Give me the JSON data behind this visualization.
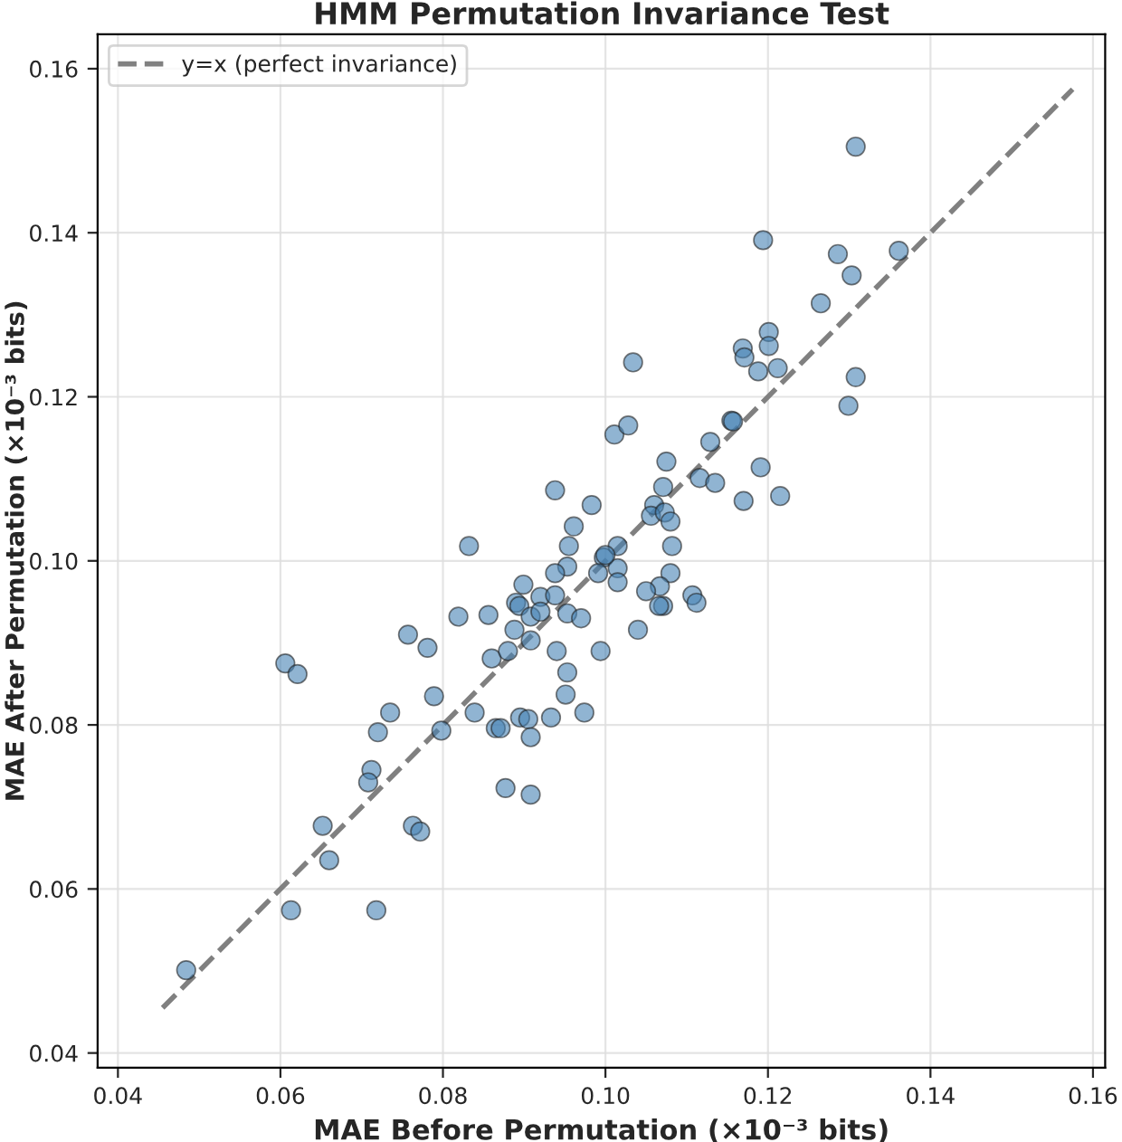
{
  "chart_data": {
    "type": "scatter",
    "title": "HMM Permutation Invariance Test",
    "xlabel": "MAE Before Permutation (×10⁻³ bits)",
    "ylabel": "MAE After Permutation (×10⁻³ bits)",
    "xlim": [
      0.0375,
      0.1615
    ],
    "ylim": [
      0.0382,
      0.1642
    ],
    "xticks": [
      0.04,
      0.06,
      0.08,
      {
        "value": 0.1,
        "label": "0.10"
      },
      0.12,
      0.14,
      0.16
    ],
    "yticks": [
      0.04,
      0.06,
      0.08,
      {
        "value": 0.1,
        "label": "0.10"
      },
      0.12,
      0.14,
      0.16
    ],
    "grid": true,
    "legend": "top left",
    "marker": "circle",
    "series": [
      {
        "color": "#4682b4",
        "x": [
          0.0484,
          0.0606,
          0.0621,
          0.0757,
          0.0781,
          0.0819,
          0.0856,
          0.086,
          0.0789,
          0.0735,
          0.072,
          0.0798,
          0.0839,
          0.0865,
          0.0871,
          0.0712,
          0.0708,
          0.0652,
          0.0763,
          0.0772,
          0.066,
          0.0613,
          0.0718,
          0.0877,
          0.1011,
          0.1028,
          0.0938,
          0.0983,
          0.0961,
          0.0955,
          0.0832,
          0.0953,
          0.0938,
          0.0899,
          0.092,
          0.0938,
          0.089,
          0.0894,
          0.0908,
          0.092,
          0.0953,
          0.097,
          0.0998,
          0.0991,
          0.1015,
          0.1015,
          0.0888,
          0.0908,
          0.088,
          0.094,
          0.0994,
          0.0953,
          0.0951,
          0.0974,
          0.0933,
          0.0895,
          0.0905,
          0.0908,
          0.0908,
          0.104,
          0.1034,
          0.1169,
          0.1171,
          0.1201,
          0.1201,
          0.1188,
          0.1212,
          0.1308,
          0.1299,
          0.1155,
          0.1157,
          0.1129,
          0.1075,
          0.1116,
          0.1135,
          0.1191,
          0.117,
          0.1215,
          0.1071,
          0.106,
          0.1056,
          0.1073,
          0.108,
          0.1015,
          0.1082,
          0.1,
          0.108,
          0.1067,
          0.105,
          0.1107,
          0.1112,
          0.1071,
          0.1066,
          0.1308,
          0.1194,
          0.1286,
          0.1361,
          0.1303,
          0.1265
        ],
        "values": [
          0.0501,
          0.0875,
          0.0862,
          0.091,
          0.0894,
          0.0932,
          0.0934,
          0.0881,
          0.0835,
          0.0815,
          0.0791,
          0.0793,
          0.0815,
          0.0796,
          0.0796,
          0.0745,
          0.073,
          0.0677,
          0.0677,
          0.067,
          0.0635,
          0.0574,
          0.0574,
          0.0723,
          0.1154,
          0.1165,
          0.1086,
          0.1068,
          0.1042,
          0.1018,
          0.1018,
          0.0993,
          0.0985,
          0.0971,
          0.0956,
          0.0958,
          0.0949,
          0.0945,
          0.0932,
          0.0938,
          0.0936,
          0.093,
          0.1004,
          0.0985,
          0.0991,
          0.0974,
          0.0916,
          0.0903,
          0.089,
          0.089,
          0.089,
          0.0864,
          0.0837,
          0.0815,
          0.0809,
          0.0809,
          0.0807,
          0.0785,
          0.0715,
          0.0916,
          0.1242,
          0.1259,
          0.1248,
          0.1279,
          0.1262,
          0.1231,
          0.1235,
          0.1224,
          0.1189,
          0.1171,
          0.117,
          0.1145,
          0.1121,
          0.1101,
          0.1095,
          0.1114,
          0.1073,
          0.1079,
          0.109,
          0.1068,
          0.1055,
          0.1059,
          0.1048,
          0.1018,
          0.1018,
          0.1007,
          0.0985,
          0.0969,
          0.0963,
          0.0958,
          0.0949,
          0.0945,
          0.0945,
          0.1505,
          0.1391,
          0.1374,
          0.1378,
          0.1348,
          0.1314
        ]
      },
      {
        "type": "line",
        "name": "y=x (perfect invariance)",
        "color": "#808080",
        "line_style": "dashed",
        "marker": "none",
        "x": [
          0.0455,
          0.1575
        ],
        "values": [
          0.0455,
          0.1575
        ]
      }
    ]
  }
}
